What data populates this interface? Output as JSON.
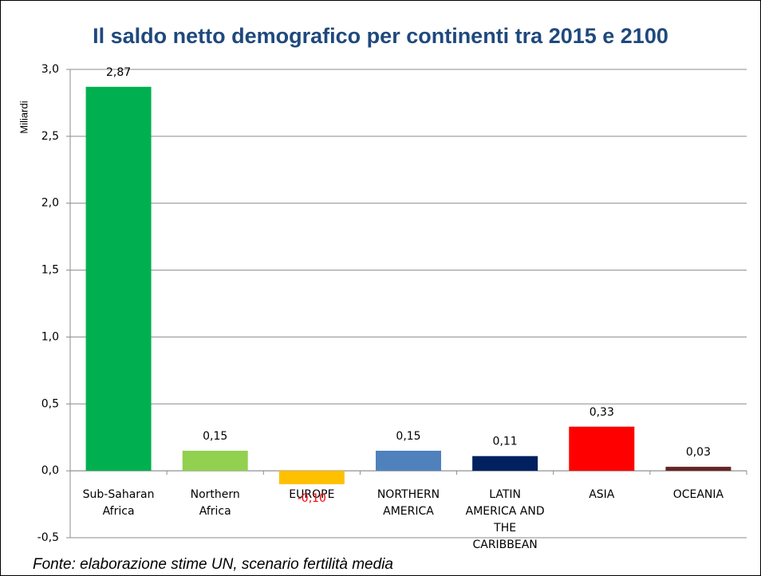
{
  "chart_data": {
    "type": "bar",
    "title": "Il saldo netto demografico per continenti tra 2015 e 2100",
    "y_label": "Miliardi",
    "source": "Fonte: elaborazione stime UN, scenario fertilità media",
    "categories": [
      "Sub-Saharan Africa",
      "Northern Africa",
      "EUROPE",
      "NORTHERN AMERICA",
      "LATIN AMERICA AND THE CARIBBEAN",
      "ASIA",
      "OCEANIA"
    ],
    "values": [
      2.87,
      0.15,
      -0.1,
      0.15,
      0.11,
      0.33,
      0.03
    ],
    "value_labels": [
      "2,87",
      "0,15",
      "-0,10",
      "0,15",
      "0,11",
      "0,33",
      "0,03"
    ],
    "colors": [
      "#00b050",
      "#92d050",
      "#ffc000",
      "#4f81bd",
      "#002060",
      "#ff0000",
      "#632523"
    ],
    "ylim": [
      -0.5,
      3.0
    ],
    "yticks": [
      {
        "value": -0.5,
        "label": "-0,5"
      },
      {
        "value": 0,
        "label": "0,0"
      },
      {
        "value": 0.5,
        "label": "0,5"
      },
      {
        "value": 1.0,
        "label": "1,0"
      },
      {
        "value": 1.5,
        "label": "1,5"
      },
      {
        "value": 2.0,
        "label": "2,0"
      },
      {
        "value": 2.5,
        "label": "2,5"
      },
      {
        "value": 3.0,
        "label": "3,0"
      }
    ],
    "grid": true
  }
}
